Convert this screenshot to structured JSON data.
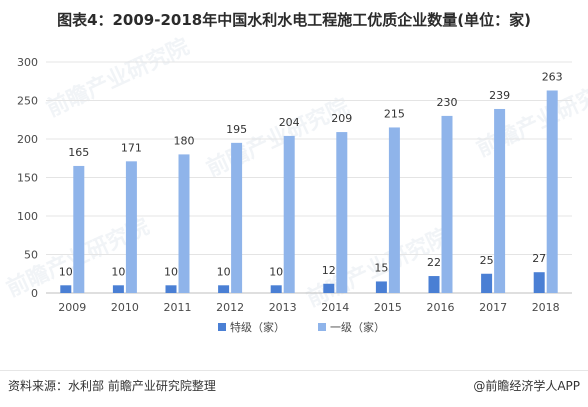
{
  "title": "图表4：2009-2018年中国水利水电工程施工优质企业数量(单位：家)",
  "footer": {
    "source": "资料来源：水利部 前瞻产业研究院整理",
    "brand": "@前瞻经济学人APP"
  },
  "watermark": "前瞻产业研究院",
  "colors": {
    "series1": "#4a7fd4",
    "series2": "#8fb4ea"
  },
  "chart_data": {
    "type": "bar",
    "categories": [
      "2009",
      "2010",
      "2011",
      "2012",
      "2013",
      "2014",
      "2015",
      "2016",
      "2017",
      "2018"
    ],
    "series": [
      {
        "name": "特级（家）",
        "values": [
          10,
          10,
          10,
          10,
          10,
          12,
          15,
          22,
          25,
          27
        ]
      },
      {
        "name": "一级（家）",
        "values": [
          165,
          171,
          180,
          195,
          204,
          209,
          215,
          230,
          239,
          263
        ]
      }
    ],
    "yticks": [
      0,
      50,
      100,
      150,
      200,
      250,
      300
    ],
    "ylim": [
      0,
      300
    ],
    "grid": true,
    "legend": "bottom"
  }
}
